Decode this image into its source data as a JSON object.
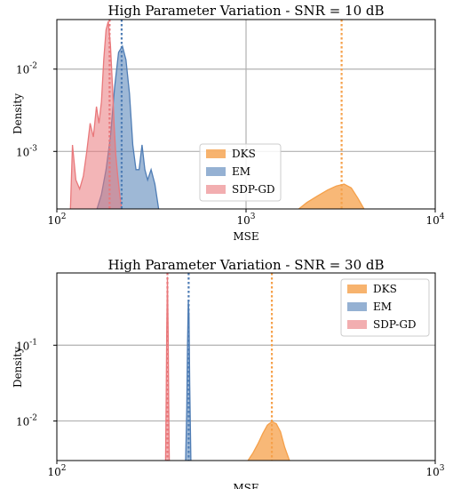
{
  "chart_data": [
    {
      "type": "area",
      "title": "High Parameter Variation - SNR = 10 dB",
      "xlabel": "MSE",
      "ylabel": "Density",
      "xscale": "log",
      "yscale": "log",
      "xlim": [
        100,
        10000
      ],
      "ylim": [
        0.0002,
        0.04
      ],
      "x_ticks": [
        {
          "v": 100,
          "base": "10",
          "exp": "2"
        },
        {
          "v": 1000,
          "base": "10",
          "exp": "3"
        },
        {
          "v": 10000,
          "base": "10",
          "exp": "4"
        }
      ],
      "y_ticks": [
        {
          "v": 0.01,
          "base": "10",
          "exp": "-2"
        },
        {
          "v": 0.001,
          "base": "10",
          "exp": "-3"
        }
      ],
      "grid": true,
      "legend_position": "lower-center",
      "series": [
        {
          "name": "DKS",
          "color": "#f5a04a",
          "mean_line": 3200,
          "x": [
            1900,
            2100,
            2400,
            2700,
            3000,
            3300,
            3600,
            3900,
            4200
          ],
          "y": [
            0.0002,
            0.00024,
            0.00029,
            0.00034,
            0.00038,
            0.0004,
            0.00036,
            0.00027,
            0.0002
          ]
        },
        {
          "name": "EM",
          "color": "#4f7db5",
          "mean_line": 220,
          "x": [
            163,
            172,
            182,
            192,
            202,
            212,
            222,
            232,
            242,
            252,
            262,
            272,
            282,
            292,
            302,
            315,
            330,
            345
          ],
          "y": [
            0.0002,
            0.0003,
            0.0006,
            0.0015,
            0.006,
            0.016,
            0.019,
            0.013,
            0.005,
            0.0012,
            0.0006,
            0.0006,
            0.0012,
            0.0006,
            0.00045,
            0.0006,
            0.0004,
            0.0002
          ]
        },
        {
          "name": "SDP-GD",
          "color": "#e9787b",
          "mean_line": 190,
          "x": [
            118,
            121,
            126,
            132,
            138,
            144,
            150,
            156,
            162,
            167,
            172,
            177,
            182,
            187,
            192,
            197,
            201,
            205,
            210,
            215,
            220
          ],
          "y": [
            0.0002,
            0.0012,
            0.00045,
            0.00035,
            0.0005,
            0.001,
            0.0022,
            0.0015,
            0.0035,
            0.0022,
            0.004,
            0.013,
            0.03,
            0.038,
            0.02,
            0.006,
            0.002,
            0.0009,
            0.0005,
            0.0003,
            0.0002
          ]
        }
      ]
    },
    {
      "type": "area",
      "title": "High Parameter Variation - SNR = 30 dB",
      "xlabel": "MSE",
      "ylabel": "Density",
      "xscale": "log",
      "yscale": "log",
      "xlim": [
        100,
        1000
      ],
      "ylim": [
        0.003,
        0.9
      ],
      "x_ticks": [
        {
          "v": 100,
          "base": "10",
          "exp": "2"
        },
        {
          "v": 1000,
          "base": "10",
          "exp": "3"
        }
      ],
      "y_ticks": [
        {
          "v": 0.1,
          "base": "10",
          "exp": "-1"
        },
        {
          "v": 0.01,
          "base": "10",
          "exp": "-2"
        }
      ],
      "grid": true,
      "legend_position": "upper-right",
      "series": [
        {
          "name": "DKS",
          "color": "#f5a04a",
          "mean_line": 370,
          "x": [
            320,
            330,
            340,
            350,
            360,
            370,
            380,
            390,
            400,
            412
          ],
          "y": [
            0.003,
            0.0038,
            0.005,
            0.0068,
            0.0088,
            0.0098,
            0.0092,
            0.0072,
            0.0045,
            0.003
          ]
        },
        {
          "name": "EM",
          "color": "#4f7db5",
          "mean_line": 223,
          "x": [
            219,
            220.5,
            221.5,
            222.5,
            223.5,
            224.5,
            226
          ],
          "y": [
            0.003,
            0.015,
            0.1,
            0.4,
            0.25,
            0.03,
            0.003
          ]
        },
        {
          "name": "SDP-GD",
          "color": "#e9787b",
          "mean_line": 196,
          "x": [
            193.8,
            194.5,
            195.2,
            196,
            196.8,
            197.5,
            198.2
          ],
          "y": [
            0.003,
            0.02,
            0.15,
            0.8,
            0.15,
            0.02,
            0.003
          ]
        }
      ]
    }
  ]
}
